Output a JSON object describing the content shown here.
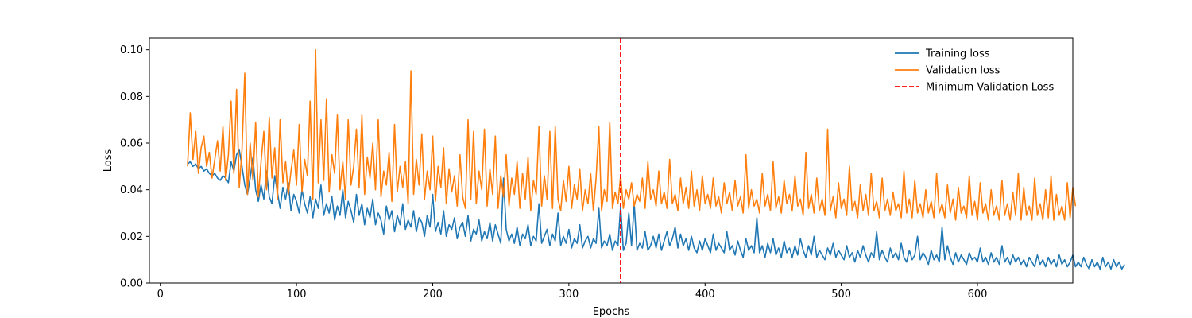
{
  "chart_data": {
    "type": "line",
    "xlabel": "Epochs",
    "ylabel": "Loss",
    "xlim": [
      -8,
      670
    ],
    "ylim": [
      0.0,
      0.105
    ],
    "x_ticks": [
      0,
      100,
      200,
      300,
      400,
      500,
      600
    ],
    "y_ticks": [
      0.0,
      0.02,
      0.04,
      0.06,
      0.08,
      0.1
    ],
    "y_tick_labels": [
      "0.00",
      "0.02",
      "0.04",
      "0.06",
      "0.08",
      "0.10"
    ],
    "grid": false,
    "legend_position": "top-right",
    "x_start": 20,
    "x_step": 2,
    "series": [
      {
        "name": "Training loss",
        "color": "#1f77b4",
        "style": "solid",
        "values": [
          0.051,
          0.052,
          0.05,
          0.051,
          0.049,
          0.05,
          0.048,
          0.049,
          0.047,
          0.046,
          0.047,
          0.045,
          0.044,
          0.046,
          0.045,
          0.043,
          0.052,
          0.048,
          0.055,
          0.057,
          0.05,
          0.042,
          0.038,
          0.045,
          0.054,
          0.04,
          0.035,
          0.042,
          0.036,
          0.048,
          0.037,
          0.034,
          0.046,
          0.039,
          0.032,
          0.041,
          0.036,
          0.043,
          0.031,
          0.038,
          0.035,
          0.03,
          0.04,
          0.034,
          0.03,
          0.037,
          0.028,
          0.036,
          0.032,
          0.042,
          0.029,
          0.034,
          0.03,
          0.037,
          0.027,
          0.033,
          0.029,
          0.04,
          0.028,
          0.035,
          0.031,
          0.026,
          0.038,
          0.029,
          0.034,
          0.025,
          0.032,
          0.028,
          0.036,
          0.025,
          0.03,
          0.027,
          0.021,
          0.033,
          0.027,
          0.031,
          0.022,
          0.029,
          0.025,
          0.034,
          0.023,
          0.027,
          0.024,
          0.031,
          0.022,
          0.028,
          0.026,
          0.02,
          0.029,
          0.024,
          0.038,
          0.022,
          0.026,
          0.021,
          0.031,
          0.02,
          0.025,
          0.023,
          0.028,
          0.019,
          0.024,
          0.026,
          0.02,
          0.029,
          0.018,
          0.023,
          0.021,
          0.027,
          0.018,
          0.022,
          0.019,
          0.026,
          0.018,
          0.025,
          0.021,
          0.017,
          0.045,
          0.023,
          0.018,
          0.021,
          0.017,
          0.024,
          0.016,
          0.021,
          0.019,
          0.025,
          0.016,
          0.02,
          0.018,
          0.034,
          0.017,
          0.02,
          0.023,
          0.016,
          0.021,
          0.018,
          0.03,
          0.016,
          0.02,
          0.017,
          0.023,
          0.015,
          0.019,
          0.017,
          0.025,
          0.015,
          0.018,
          0.02,
          0.015,
          0.019,
          0.017,
          0.032,
          0.015,
          0.018,
          0.016,
          0.021,
          0.014,
          0.018,
          0.016,
          0.033,
          0.014,
          0.017,
          0.03,
          0.016,
          0.034,
          0.014,
          0.017,
          0.015,
          0.022,
          0.014,
          0.016,
          0.02,
          0.015,
          0.021,
          0.014,
          0.018,
          0.022,
          0.016,
          0.019,
          0.024,
          0.015,
          0.021,
          0.016,
          0.019,
          0.014,
          0.02,
          0.015,
          0.013,
          0.018,
          0.014,
          0.019,
          0.016,
          0.013,
          0.021,
          0.014,
          0.017,
          0.015,
          0.013,
          0.022,
          0.014,
          0.016,
          0.012,
          0.018,
          0.014,
          0.011,
          0.019,
          0.014,
          0.016,
          0.013,
          0.028,
          0.013,
          0.016,
          0.011,
          0.017,
          0.013,
          0.019,
          0.012,
          0.015,
          0.011,
          0.018,
          0.013,
          0.015,
          0.011,
          0.016,
          0.012,
          0.019,
          0.014,
          0.011,
          0.016,
          0.012,
          0.02,
          0.011,
          0.014,
          0.012,
          0.01,
          0.015,
          0.012,
          0.017,
          0.011,
          0.014,
          0.012,
          0.01,
          0.016,
          0.011,
          0.013,
          0.009,
          0.014,
          0.011,
          0.016,
          0.012,
          0.009,
          0.013,
          0.011,
          0.022,
          0.01,
          0.014,
          0.011,
          0.009,
          0.015,
          0.011,
          0.013,
          0.01,
          0.017,
          0.011,
          0.009,
          0.014,
          0.01,
          0.012,
          0.02,
          0.01,
          0.013,
          0.011,
          0.008,
          0.014,
          0.01,
          0.012,
          0.009,
          0.024,
          0.01,
          0.016,
          0.011,
          0.008,
          0.013,
          0.009,
          0.012,
          0.01,
          0.008,
          0.013,
          0.01,
          0.011,
          0.009,
          0.015,
          0.009,
          0.011,
          0.008,
          0.013,
          0.009,
          0.011,
          0.008,
          0.016,
          0.009,
          0.011,
          0.008,
          0.012,
          0.009,
          0.011,
          0.008,
          0.01,
          0.007,
          0.011,
          0.009,
          0.007,
          0.012,
          0.008,
          0.01,
          0.007,
          0.011,
          0.008,
          0.01,
          0.007,
          0.012,
          0.008,
          0.01,
          0.007,
          0.009,
          0.012,
          0.007,
          0.009,
          0.007,
          0.011,
          0.008,
          0.006,
          0.01,
          0.007,
          0.009,
          0.006,
          0.011,
          0.007,
          0.009,
          0.006,
          0.01,
          0.007,
          0.009,
          0.006,
          0.008
        ]
      },
      {
        "name": "Validation loss",
        "color": "#ff7f0e",
        "style": "solid",
        "values": [
          0.05,
          0.073,
          0.053,
          0.065,
          0.047,
          0.058,
          0.063,
          0.05,
          0.056,
          0.045,
          0.053,
          0.061,
          0.048,
          0.067,
          0.044,
          0.055,
          0.078,
          0.047,
          0.083,
          0.041,
          0.057,
          0.09,
          0.038,
          0.06,
          0.044,
          0.069,
          0.037,
          0.052,
          0.065,
          0.04,
          0.071,
          0.045,
          0.058,
          0.036,
          0.07,
          0.043,
          0.052,
          0.038,
          0.048,
          0.057,
          0.042,
          0.068,
          0.039,
          0.053,
          0.046,
          0.078,
          0.036,
          0.1,
          0.043,
          0.07,
          0.044,
          0.079,
          0.039,
          0.055,
          0.047,
          0.072,
          0.04,
          0.052,
          0.036,
          0.07,
          0.042,
          0.05,
          0.066,
          0.041,
          0.072,
          0.038,
          0.054,
          0.045,
          0.06,
          0.04,
          0.07,
          0.037,
          0.048,
          0.042,
          0.056,
          0.035,
          0.068,
          0.039,
          0.05,
          0.041,
          0.052,
          0.034,
          0.091,
          0.038,
          0.053,
          0.042,
          0.064,
          0.036,
          0.048,
          0.04,
          0.063,
          0.035,
          0.05,
          0.041,
          0.058,
          0.034,
          0.049,
          0.039,
          0.046,
          0.033,
          0.055,
          0.037,
          0.032,
          0.07,
          0.036,
          0.065,
          0.034,
          0.048,
          0.04,
          0.066,
          0.033,
          0.049,
          0.038,
          0.063,
          0.032,
          0.046,
          0.037,
          0.055,
          0.033,
          0.045,
          0.038,
          0.052,
          0.032,
          0.047,
          0.036,
          0.054,
          0.031,
          0.044,
          0.038,
          0.067,
          0.033,
          0.046,
          0.036,
          0.065,
          0.032,
          0.067,
          0.036,
          0.031,
          0.044,
          0.035,
          0.05,
          0.032,
          0.042,
          0.036,
          0.049,
          0.031,
          0.04,
          0.034,
          0.047,
          0.031,
          0.045,
          0.067,
          0.031,
          0.04,
          0.035,
          0.069,
          0.032,
          0.039,
          0.034,
          0.046,
          0.032,
          0.04,
          0.036,
          0.043,
          0.033,
          0.038,
          0.035,
          0.045,
          0.032,
          0.052,
          0.036,
          0.04,
          0.033,
          0.048,
          0.034,
          0.039,
          0.032,
          0.053,
          0.034,
          0.038,
          0.031,
          0.045,
          0.034,
          0.041,
          0.032,
          0.048,
          0.033,
          0.04,
          0.031,
          0.046,
          0.034,
          0.038,
          0.032,
          0.045,
          0.033,
          0.037,
          0.03,
          0.043,
          0.034,
          0.039,
          0.031,
          0.044,
          0.033,
          0.037,
          0.03,
          0.055,
          0.032,
          0.04,
          0.033,
          0.036,
          0.03,
          0.047,
          0.033,
          0.038,
          0.031,
          0.052,
          0.032,
          0.037,
          0.03,
          0.044,
          0.034,
          0.038,
          0.031,
          0.046,
          0.033,
          0.036,
          0.029,
          0.056,
          0.032,
          0.038,
          0.03,
          0.045,
          0.031,
          0.036,
          0.029,
          0.066,
          0.031,
          0.037,
          0.028,
          0.043,
          0.032,
          0.036,
          0.029,
          0.05,
          0.031,
          0.035,
          0.028,
          0.042,
          0.031,
          0.038,
          0.029,
          0.047,
          0.031,
          0.035,
          0.028,
          0.045,
          0.031,
          0.036,
          0.029,
          0.039,
          0.031,
          0.034,
          0.028,
          0.048,
          0.03,
          0.036,
          0.028,
          0.044,
          0.03,
          0.034,
          0.028,
          0.04,
          0.03,
          0.035,
          0.028,
          0.047,
          0.03,
          0.034,
          0.028,
          0.042,
          0.03,
          0.036,
          0.027,
          0.041,
          0.03,
          0.033,
          0.028,
          0.046,
          0.029,
          0.035,
          0.027,
          0.043,
          0.03,
          0.034,
          0.027,
          0.04,
          0.029,
          0.033,
          0.027,
          0.044,
          0.029,
          0.034,
          0.027,
          0.039,
          0.029,
          0.047,
          0.027,
          0.041,
          0.029,
          0.033,
          0.027,
          0.045,
          0.029,
          0.034,
          0.027,
          0.04,
          0.028,
          0.046,
          0.027,
          0.038,
          0.029,
          0.033,
          0.027,
          0.043,
          0.028,
          0.041,
          0.033
        ]
      },
      {
        "name": "Minimum Validation Loss",
        "color": "#ff0000",
        "style": "dashed",
        "x": 338
      }
    ]
  }
}
